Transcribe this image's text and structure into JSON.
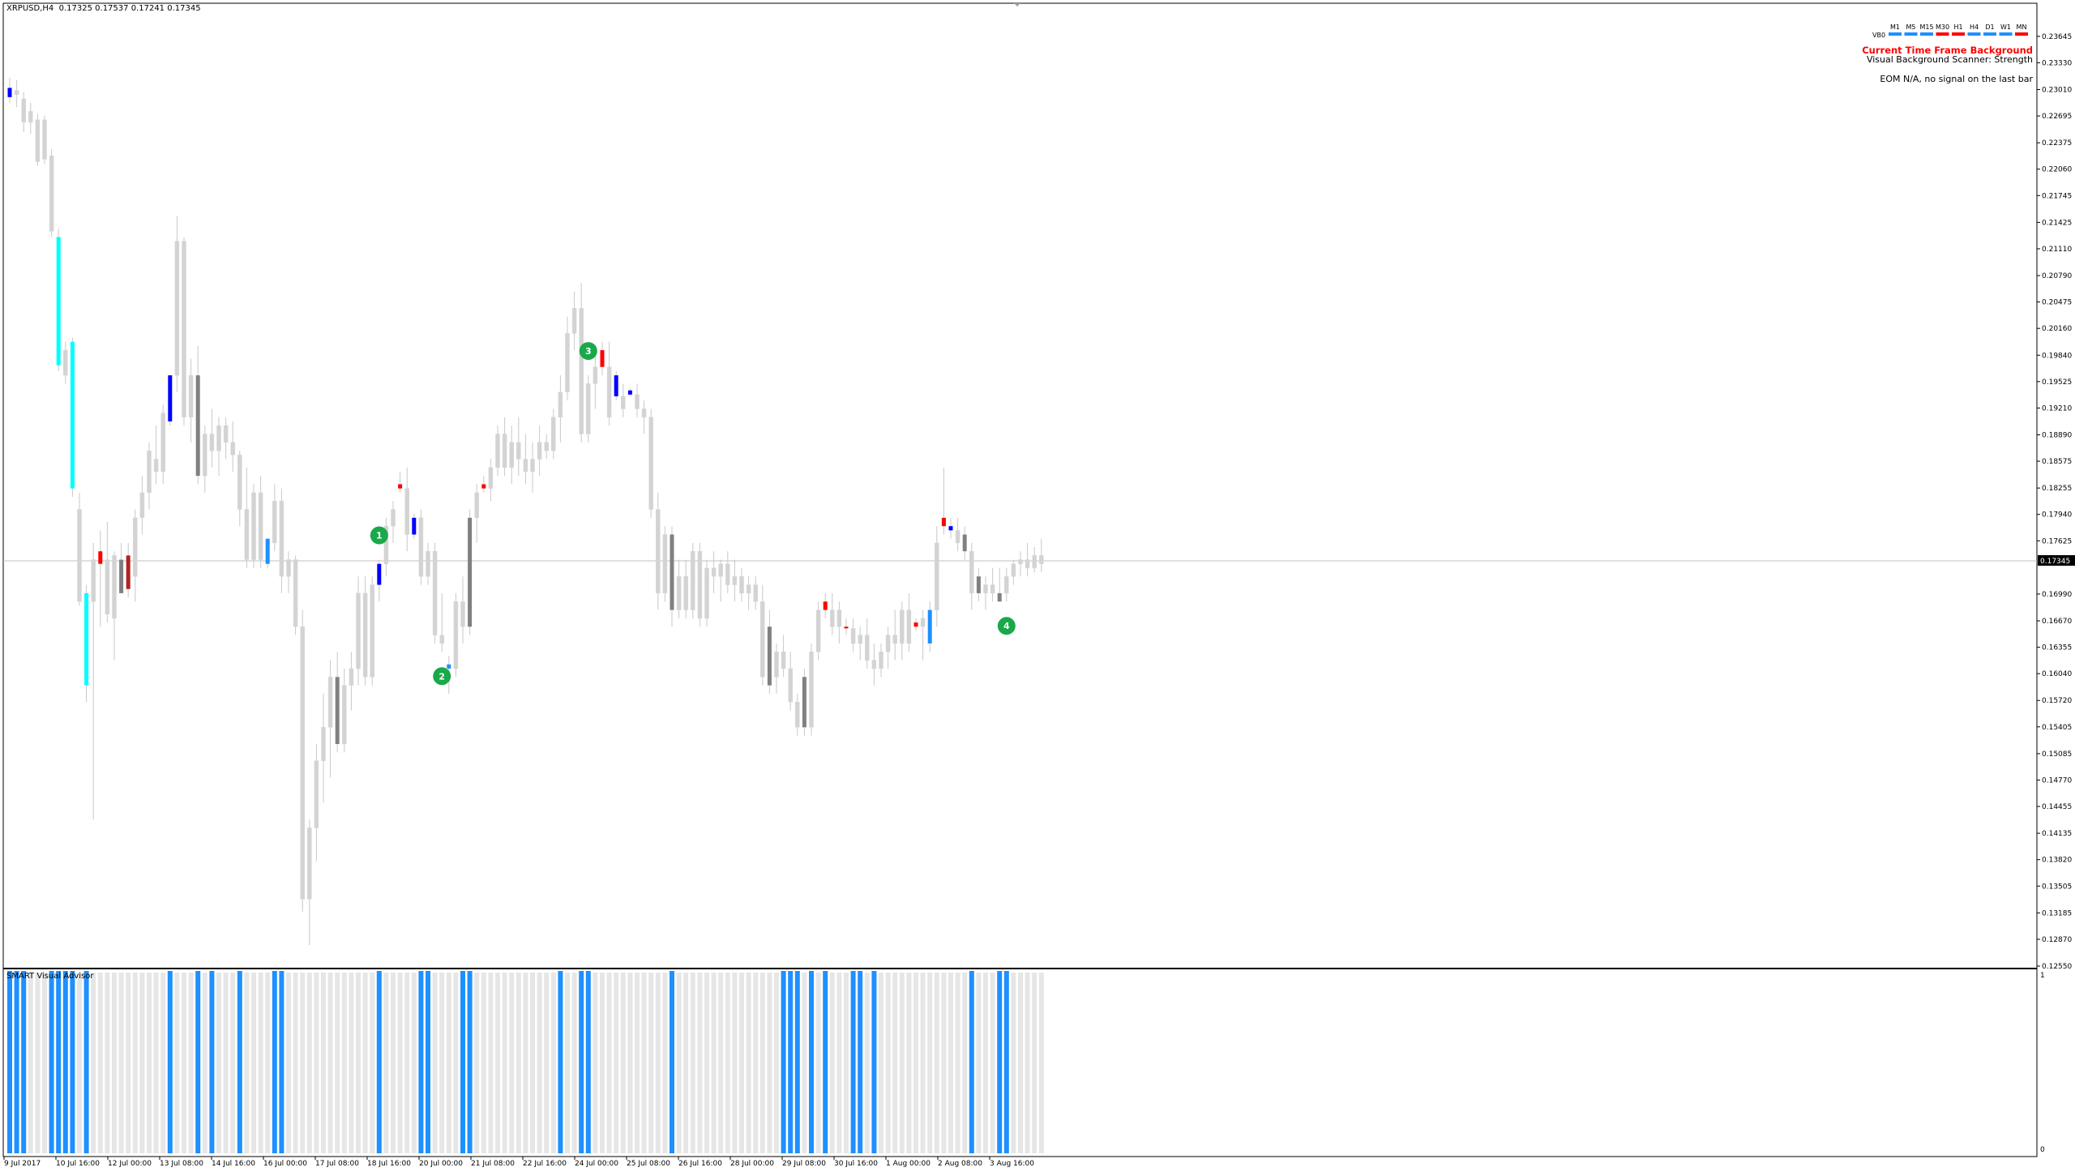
{
  "header": {
    "symbol": "XRPUSD,H4",
    "quotes": "0.17325 0.17537 0.17241 0.17345"
  },
  "colors": {
    "grid_line": "#c0c0c0",
    "bull_neutral": "#d3d3d3",
    "bear_neutral": "#808080",
    "strong_blue": "#0000ff",
    "light_blue": "#1e90ff",
    "cyan": "#00ffff",
    "red": "#ff0000",
    "dark_red": "#b22222",
    "marker_green": "#1aa84a",
    "hist_blue": "#1e90ff",
    "hist_grey": "#e6e6e6"
  },
  "info_panel": {
    "tf_prefix": "VB0",
    "timeframes": [
      "M1",
      "M5",
      "M15",
      "M30",
      "H1",
      "H4",
      "D1",
      "W1",
      "MN"
    ],
    "tf_colors": [
      "#1e90ff",
      "#1e90ff",
      "#1e90ff",
      "#ff0000",
      "#ff0000",
      "#1e90ff",
      "#1e90ff",
      "#1e90ff",
      "#ff0000"
    ],
    "title": "Current Time Frame Background",
    "subtitle": "Visual Background Scanner: Strength",
    "eom_text": "EOM N/A, no signal on the last bar"
  },
  "price_axis": {
    "labels": [
      "0.23645",
      "0.23330",
      "0.23010",
      "0.22695",
      "0.22375",
      "0.22060",
      "0.21745",
      "0.21425",
      "0.21110",
      "0.20790",
      "0.20475",
      "0.20160",
      "0.19840",
      "0.19525",
      "0.19210",
      "0.18890",
      "0.18575",
      "0.18255",
      "0.17940",
      "0.17625",
      "0.17345",
      "0.16990",
      "0.16670",
      "0.16355",
      "0.16040",
      "0.15720",
      "0.15405",
      "0.15085",
      "0.14770",
      "0.14455",
      "0.14135",
      "0.13820",
      "0.13505",
      "0.13185",
      "0.12870",
      "0.12550"
    ],
    "current_price": "0.17345"
  },
  "time_axis": {
    "labels": [
      "9 Jul 2017",
      "10 Jul 16:00",
      "12 Jul 00:00",
      "13 Jul 08:00",
      "14 Jul 16:00",
      "16 Jul 00:00",
      "17 Jul 08:00",
      "18 Jul 16:00",
      "20 Jul 00:00",
      "21 Jul 08:00",
      "22 Jul 16:00",
      "24 Jul 00:00",
      "25 Jul 08:00",
      "26 Jul 16:00",
      "28 Jul 00:00",
      "29 Jul 08:00",
      "30 Jul 16:00",
      "1 Aug 00:00",
      "2 Aug 08:00",
      "3 Aug 16:00"
    ]
  },
  "markers": [
    "1",
    "2",
    "3",
    "4"
  ],
  "subwindow": {
    "label": "SMART Visual Advisor",
    "max_label": "1",
    "min_label": "0"
  },
  "chart_data": {
    "type": "candlestick",
    "symbol": "XRPUSD",
    "timeframe": "H4",
    "ylim": [
      0.1255,
      0.2375
    ],
    "current_price": 0.17345,
    "candles": [
      [
        0.2303,
        0.2315,
        0.2285,
        0.2292,
        "strong_blue"
      ],
      [
        0.2295,
        0.2312,
        0.228,
        0.23,
        "neutral"
      ],
      [
        0.229,
        0.2298,
        0.225,
        0.2262,
        "neutral"
      ],
      [
        0.2262,
        0.2285,
        0.2248,
        0.2275,
        "neutral"
      ],
      [
        0.2265,
        0.2272,
        0.221,
        0.2215,
        "neutral"
      ],
      [
        0.2265,
        0.227,
        0.2212,
        0.2218,
        "neutral"
      ],
      [
        0.2222,
        0.223,
        0.2125,
        0.2132,
        "neutral"
      ],
      [
        0.2125,
        0.2135,
        0.1965,
        0.1972,
        "cyan"
      ],
      [
        0.199,
        0.2,
        0.195,
        0.196,
        "neutral"
      ],
      [
        0.2,
        0.2005,
        0.1815,
        0.1825,
        "cyan"
      ],
      [
        0.18,
        0.182,
        0.1685,
        0.169,
        "neutral"
      ],
      [
        0.17,
        0.171,
        0.157,
        0.159,
        "cyan"
      ],
      [
        0.169,
        0.176,
        0.143,
        0.174,
        "neutral"
      ],
      [
        0.175,
        0.1775,
        0.166,
        0.1735,
        "red"
      ],
      [
        0.174,
        0.1785,
        0.1665,
        0.1675,
        "neutral"
      ],
      [
        0.167,
        0.175,
        0.162,
        0.1745,
        "neutral"
      ],
      [
        0.174,
        0.176,
        0.17,
        0.17,
        "bearish"
      ],
      [
        0.1745,
        0.176,
        0.1695,
        0.1705,
        "dark_red"
      ],
      [
        0.172,
        0.18,
        0.169,
        0.179,
        "neutral"
      ],
      [
        0.179,
        0.184,
        0.177,
        0.182,
        "neutral"
      ],
      [
        0.182,
        0.188,
        0.18,
        0.187,
        "neutral"
      ],
      [
        0.186,
        0.19,
        0.183,
        0.1845,
        "neutral"
      ],
      [
        0.1845,
        0.1925,
        0.183,
        0.1915,
        "neutral"
      ],
      [
        0.1905,
        0.196,
        0.19,
        0.196,
        "strong_blue"
      ],
      [
        0.196,
        0.215,
        0.194,
        0.212,
        "neutral"
      ],
      [
        0.212,
        0.2125,
        0.19,
        0.191,
        "neutral"
      ],
      [
        0.191,
        0.198,
        0.188,
        0.196,
        "neutral"
      ],
      [
        0.196,
        0.1995,
        0.183,
        0.184,
        "bearish"
      ],
      [
        0.184,
        0.19,
        0.182,
        0.189,
        "neutral"
      ],
      [
        0.189,
        0.192,
        0.185,
        0.187,
        "neutral"
      ],
      [
        0.187,
        0.191,
        0.184,
        0.19,
        "neutral"
      ],
      [
        0.19,
        0.191,
        0.186,
        0.188,
        "neutral"
      ],
      [
        0.188,
        0.1905,
        0.1845,
        0.1865,
        "neutral"
      ],
      [
        0.1865,
        0.187,
        0.178,
        0.18,
        "neutral"
      ],
      [
        0.18,
        0.185,
        0.173,
        0.174,
        "neutral"
      ],
      [
        0.174,
        0.183,
        0.173,
        0.182,
        "neutral"
      ],
      [
        0.182,
        0.184,
        0.173,
        0.174,
        "neutral"
      ],
      [
        0.1735,
        0.1765,
        0.173,
        0.1765,
        "light_blue"
      ],
      [
        0.176,
        0.183,
        0.175,
        0.181,
        "neutral"
      ],
      [
        0.181,
        0.1825,
        0.17,
        0.172,
        "neutral"
      ],
      [
        0.172,
        0.175,
        0.17,
        0.174,
        "neutral"
      ],
      [
        0.174,
        0.1745,
        0.165,
        0.166,
        "neutral"
      ],
      [
        0.166,
        0.168,
        0.132,
        0.1335,
        "neutral"
      ],
      [
        0.1335,
        0.143,
        0.128,
        0.142,
        "neutral"
      ],
      [
        0.142,
        0.152,
        0.138,
        0.15,
        "neutral"
      ],
      [
        0.15,
        0.158,
        0.145,
        0.154,
        "neutral"
      ],
      [
        0.154,
        0.162,
        0.148,
        0.16,
        "neutral"
      ],
      [
        0.16,
        0.163,
        0.151,
        0.152,
        "bearish"
      ],
      [
        0.152,
        0.161,
        0.151,
        0.159,
        "neutral"
      ],
      [
        0.159,
        0.163,
        0.156,
        0.161,
        "neutral"
      ],
      [
        0.161,
        0.172,
        0.159,
        0.17,
        "neutral"
      ],
      [
        0.17,
        0.172,
        0.159,
        0.16,
        "neutral"
      ],
      [
        0.16,
        0.172,
        0.159,
        0.171,
        "neutral"
      ],
      [
        0.171,
        0.174,
        0.169,
        0.1735,
        "strong_blue"
      ],
      [
        0.1735,
        0.179,
        0.172,
        0.178,
        "neutral"
      ],
      [
        0.178,
        0.181,
        0.176,
        0.18,
        "neutral"
      ],
      [
        0.183,
        0.1845,
        0.182,
        0.1825,
        "red"
      ],
      [
        0.1825,
        0.185,
        0.175,
        0.177,
        "neutral"
      ],
      [
        0.177,
        0.1795,
        0.1765,
        0.179,
        "strong_blue"
      ],
      [
        0.179,
        0.18,
        0.171,
        0.172,
        "neutral"
      ],
      [
        0.172,
        0.176,
        0.171,
        0.175,
        "neutral"
      ],
      [
        0.175,
        0.176,
        0.164,
        0.165,
        "neutral"
      ],
      [
        0.165,
        0.17,
        0.163,
        0.164,
        "neutral"
      ],
      [
        0.1615,
        0.1625,
        0.158,
        0.161,
        "light_blue"
      ],
      [
        0.161,
        0.17,
        0.16,
        0.169,
        "neutral"
      ],
      [
        0.169,
        0.172,
        0.164,
        0.166,
        "neutral"
      ],
      [
        0.166,
        0.18,
        0.165,
        0.179,
        "bearish"
      ],
      [
        0.179,
        0.183,
        0.176,
        0.182,
        "neutral"
      ],
      [
        0.183,
        0.184,
        0.182,
        0.1825,
        "red"
      ],
      [
        0.1825,
        0.186,
        0.181,
        0.185,
        "neutral"
      ],
      [
        0.185,
        0.19,
        0.184,
        0.189,
        "neutral"
      ],
      [
        0.189,
        0.191,
        0.184,
        0.185,
        "neutral"
      ],
      [
        0.185,
        0.19,
        0.183,
        0.188,
        "neutral"
      ],
      [
        0.188,
        0.191,
        0.184,
        0.186,
        "neutral"
      ],
      [
        0.186,
        0.189,
        0.183,
        0.1845,
        "neutral"
      ],
      [
        0.1845,
        0.188,
        0.182,
        0.186,
        "neutral"
      ],
      [
        0.186,
        0.19,
        0.184,
        0.188,
        "neutral"
      ],
      [
        0.188,
        0.189,
        0.186,
        0.187,
        "neutral"
      ],
      [
        0.187,
        0.192,
        0.186,
        0.191,
        "neutral"
      ],
      [
        0.191,
        0.196,
        0.188,
        0.194,
        "neutral"
      ],
      [
        0.194,
        0.203,
        0.193,
        0.201,
        "neutral"
      ],
      [
        0.201,
        0.206,
        0.199,
        0.204,
        "neutral"
      ],
      [
        0.204,
        0.207,
        0.188,
        0.189,
        "neutral"
      ],
      [
        0.189,
        0.196,
        0.188,
        0.195,
        "neutral"
      ],
      [
        0.195,
        0.199,
        0.192,
        0.197,
        "neutral"
      ],
      [
        0.199,
        0.2,
        0.196,
        0.197,
        "red"
      ],
      [
        0.197,
        0.2,
        0.19,
        0.191,
        "neutral"
      ],
      [
        0.196,
        0.1965,
        0.193,
        0.1935,
        "strong_blue"
      ],
      [
        0.1935,
        0.195,
        0.191,
        0.192,
        "neutral"
      ],
      [
        0.1942,
        0.1945,
        0.1935,
        0.1937,
        "strong_blue"
      ],
      [
        0.1937,
        0.195,
        0.191,
        0.192,
        "neutral"
      ],
      [
        0.192,
        0.193,
        0.189,
        0.191,
        "neutral"
      ],
      [
        0.191,
        0.192,
        0.179,
        0.18,
        "neutral"
      ],
      [
        0.18,
        0.182,
        0.168,
        0.17,
        "neutral"
      ],
      [
        0.17,
        0.178,
        0.169,
        0.177,
        "neutral"
      ],
      [
        0.177,
        0.178,
        0.166,
        0.168,
        "bearish"
      ],
      [
        0.168,
        0.174,
        0.167,
        0.172,
        "neutral"
      ],
      [
        0.172,
        0.174,
        0.167,
        0.168,
        "neutral"
      ],
      [
        0.168,
        0.176,
        0.167,
        0.175,
        "neutral"
      ],
      [
        0.175,
        0.176,
        0.166,
        0.167,
        "neutral"
      ],
      [
        0.167,
        0.174,
        0.166,
        0.173,
        "neutral"
      ],
      [
        0.173,
        0.175,
        0.17,
        0.172,
        "neutral"
      ],
      [
        0.172,
        0.174,
        0.169,
        0.1735,
        "neutral"
      ],
      [
        0.1735,
        0.175,
        0.17,
        0.171,
        "neutral"
      ],
      [
        0.171,
        0.174,
        0.169,
        0.172,
        "neutral"
      ],
      [
        0.172,
        0.173,
        0.169,
        0.17,
        "neutral"
      ],
      [
        0.17,
        0.172,
        0.168,
        0.171,
        "neutral"
      ],
      [
        0.171,
        0.172,
        0.168,
        0.169,
        "neutral"
      ],
      [
        0.169,
        0.171,
        0.159,
        0.16,
        "neutral"
      ],
      [
        0.166,
        0.168,
        0.158,
        0.159,
        "bearish"
      ],
      [
        0.16,
        0.164,
        0.158,
        0.163,
        "neutral"
      ],
      [
        0.163,
        0.165,
        0.16,
        0.161,
        "neutral"
      ],
      [
        0.161,
        0.163,
        0.156,
        0.157,
        "neutral"
      ],
      [
        0.157,
        0.158,
        0.153,
        0.154,
        "neutral"
      ],
      [
        0.16,
        0.161,
        0.153,
        0.154,
        "bearish"
      ],
      [
        0.154,
        0.164,
        0.153,
        0.163,
        "neutral"
      ],
      [
        0.163,
        0.169,
        0.162,
        0.168,
        "neutral"
      ],
      [
        0.169,
        0.17,
        0.167,
        0.168,
        "red"
      ],
      [
        0.168,
        0.17,
        0.165,
        0.166,
        "neutral"
      ],
      [
        0.166,
        0.169,
        0.164,
        0.168,
        "neutral"
      ],
      [
        0.166,
        0.167,
        0.165,
        0.1658,
        "red"
      ],
      [
        0.1658,
        0.167,
        0.163,
        0.164,
        "neutral"
      ],
      [
        0.164,
        0.166,
        0.162,
        0.165,
        "neutral"
      ],
      [
        0.165,
        0.167,
        0.161,
        0.162,
        "neutral"
      ],
      [
        0.162,
        0.164,
        0.159,
        0.161,
        "neutral"
      ],
      [
        0.161,
        0.164,
        0.16,
        0.163,
        "neutral"
      ],
      [
        0.163,
        0.166,
        0.161,
        0.165,
        "neutral"
      ],
      [
        0.165,
        0.168,
        0.162,
        0.164,
        "neutral"
      ],
      [
        0.164,
        0.169,
        0.162,
        0.168,
        "neutral"
      ],
      [
        0.168,
        0.17,
        0.163,
        0.164,
        "neutral"
      ],
      [
        0.1665,
        0.167,
        0.1655,
        0.166,
        "red"
      ],
      [
        0.166,
        0.168,
        0.162,
        0.167,
        "neutral"
      ],
      [
        0.164,
        0.169,
        0.163,
        0.168,
        "light_blue"
      ],
      [
        0.168,
        0.178,
        0.166,
        0.176,
        "neutral"
      ],
      [
        0.179,
        0.185,
        0.177,
        0.178,
        "red"
      ],
      [
        0.178,
        0.179,
        0.1765,
        0.1775,
        "strong_blue"
      ],
      [
        0.1775,
        0.179,
        0.175,
        0.176,
        "neutral"
      ],
      [
        0.177,
        0.178,
        0.174,
        0.175,
        "bearish"
      ],
      [
        0.175,
        0.176,
        0.168,
        0.17,
        "neutral"
      ],
      [
        0.17,
        0.173,
        0.169,
        0.172,
        "bearish"
      ],
      [
        0.17,
        0.172,
        0.168,
        0.171,
        "neutral"
      ],
      [
        0.171,
        0.173,
        0.169,
        0.17,
        "neutral"
      ],
      [
        0.17,
        0.173,
        0.169,
        0.169,
        "bearish"
      ],
      [
        0.17,
        0.173,
        0.169,
        0.172,
        "neutral"
      ],
      [
        0.172,
        0.174,
        0.171,
        0.1735,
        "neutral"
      ],
      [
        0.1735,
        0.175,
        0.172,
        0.174,
        "neutral"
      ],
      [
        0.174,
        0.176,
        0.172,
        0.173,
        "neutral"
      ],
      [
        0.173,
        0.1755,
        0.1725,
        0.1745,
        "neutral"
      ],
      [
        0.1745,
        0.1765,
        0.1725,
        0.1735,
        "neutral"
      ]
    ],
    "signal_markers": [
      {
        "label": "1",
        "index": 53,
        "position": "above"
      },
      {
        "label": "2",
        "index": 62,
        "position": "below"
      },
      {
        "label": "3",
        "index": 83,
        "position": "above"
      },
      {
        "label": "4",
        "index": 143,
        "position": "below"
      }
    ],
    "subwindow_histogram": {
      "name": "SMART Visual Advisor",
      "ylim": [
        0,
        1
      ],
      "active_bars": [
        0,
        1,
        2,
        6,
        7,
        8,
        9,
        11,
        23,
        27,
        29,
        33,
        38,
        39,
        53,
        59,
        60,
        65,
        66,
        79,
        82,
        83,
        95,
        111,
        112,
        113,
        115,
        117,
        121,
        122,
        124,
        138,
        142,
        143
      ]
    }
  }
}
